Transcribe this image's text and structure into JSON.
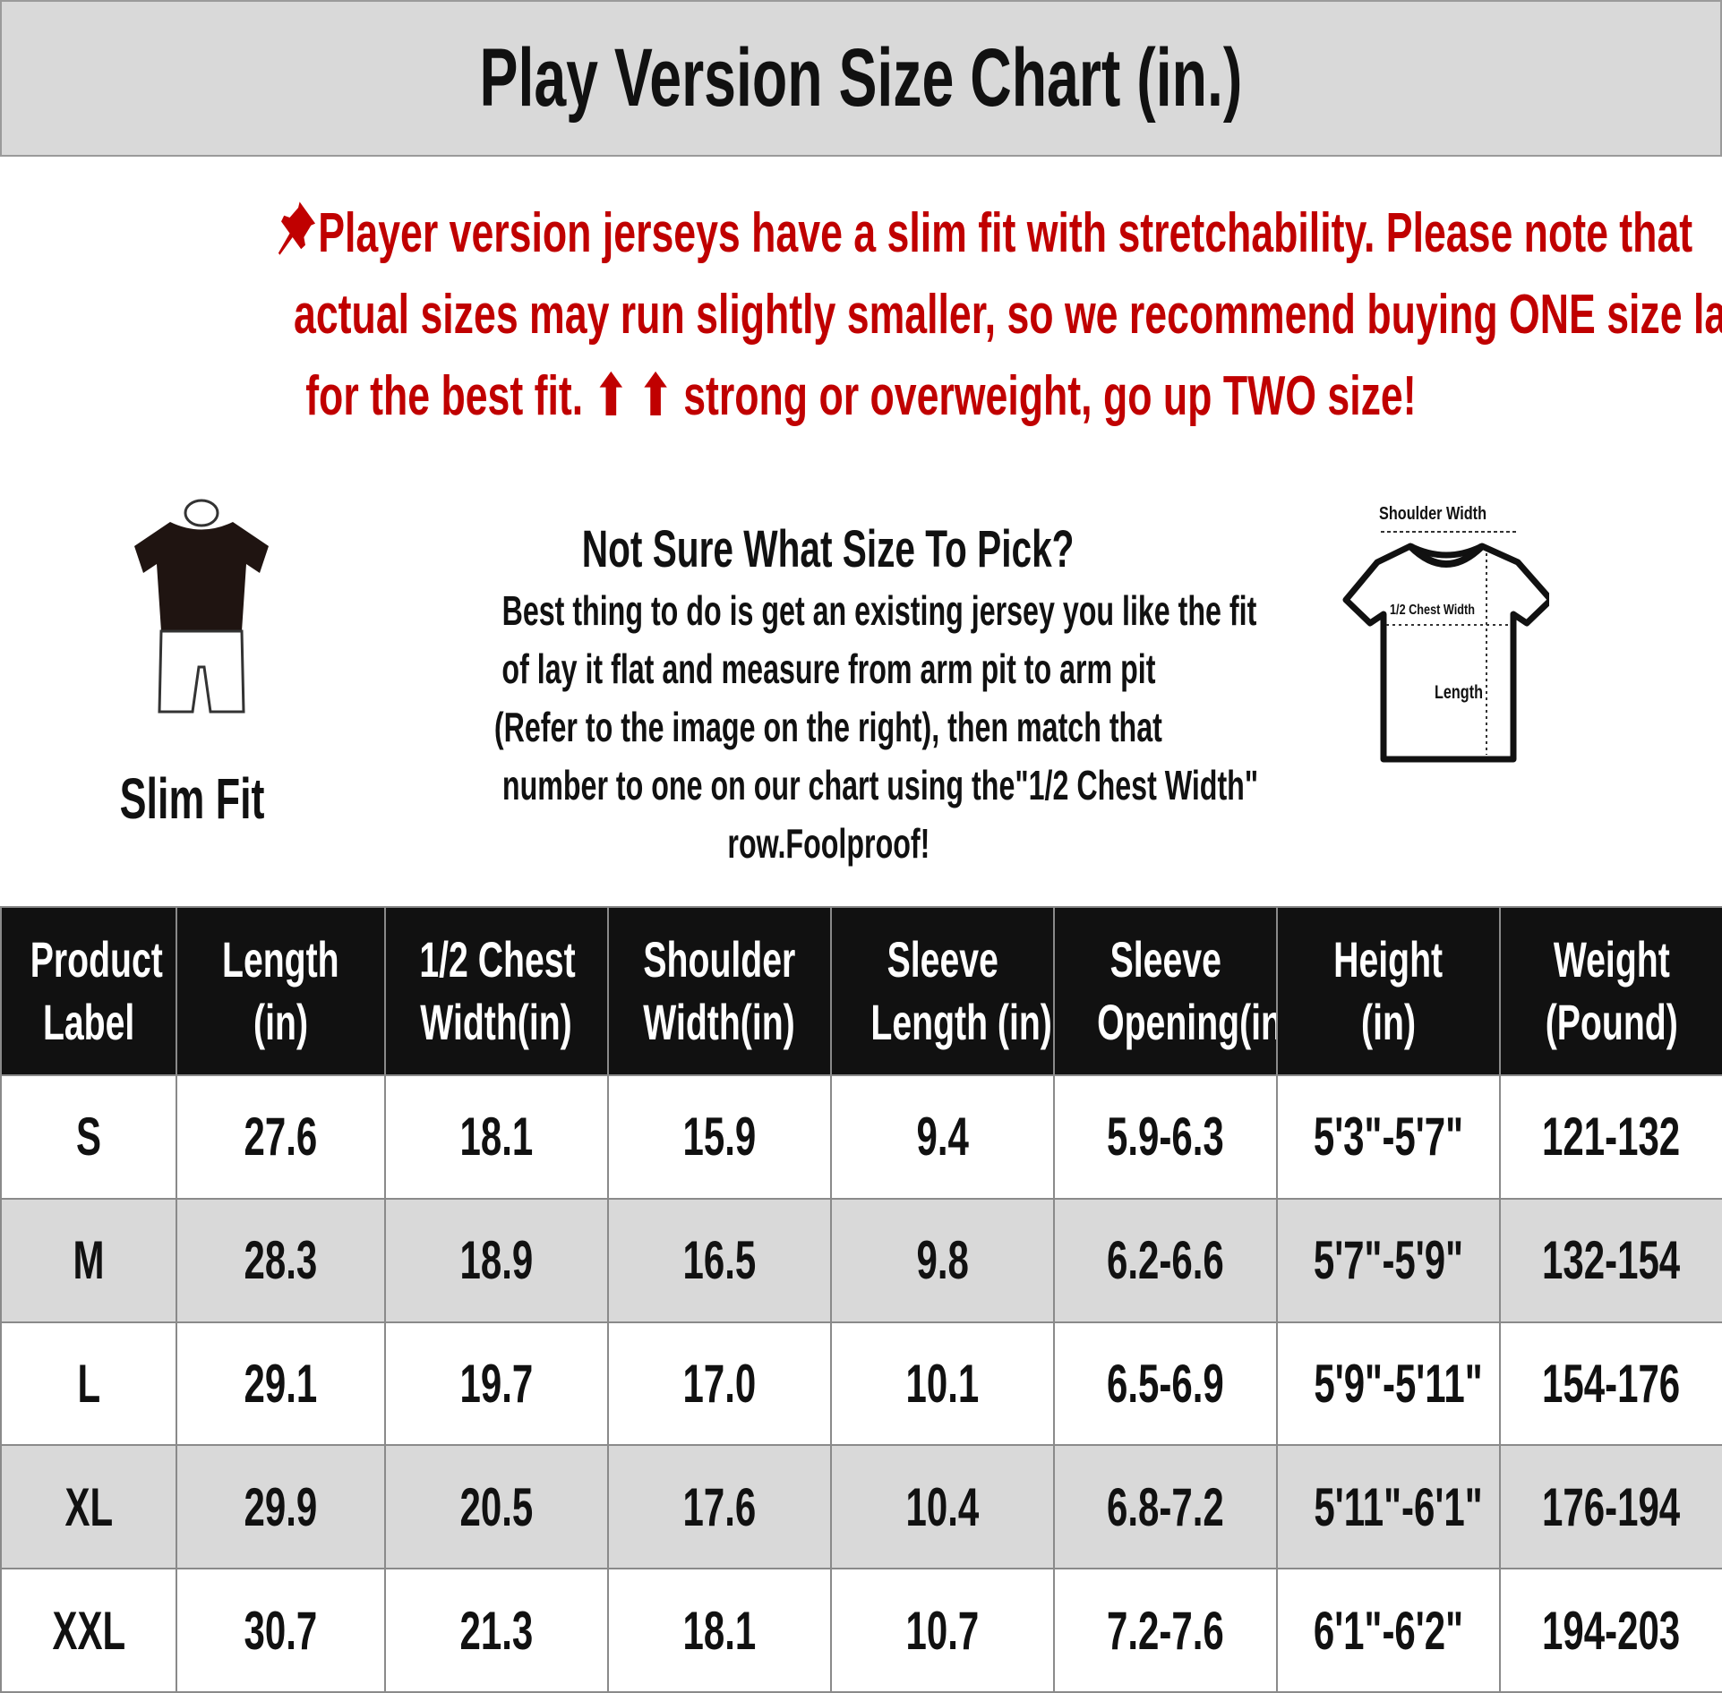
{
  "title": "Play Version Size Chart (in.)",
  "notice": {
    "icon": "pushpin-icon",
    "lines": [
      "Player version jerseys have a slim fit with stretchability. Please note that",
      "actual sizes may run slightly smaller, so we recommend buying ONE size larger",
      "for the best fit. ⬆ ⬆ strong or overweight, go up TWO size!"
    ],
    "color": "#c00000"
  },
  "fit_label": "Slim Fit",
  "help": {
    "heading": "Not Sure What Size To Pick?",
    "lines": [
      "Best thing to do is get an existing jersey you like the fit",
      "of lay it flat and measure from arm pit to arm pit",
      "(Refer to the image on the right), then match that",
      "number to one on our chart using the\"1/2 Chest Width\"",
      "row.Foolproof!"
    ]
  },
  "diagram": {
    "shoulder": "Shoulder Width",
    "chest": "1/2 Chest Width",
    "length": "Length"
  },
  "table": {
    "headers": [
      [
        "Product",
        "Label"
      ],
      [
        "Length",
        "(in)"
      ],
      [
        "1/2 Chest",
        "Width(in)"
      ],
      [
        "Shoulder",
        "Width(in)"
      ],
      [
        "Sleeve",
        "Length (in)"
      ],
      [
        "Sleeve",
        "Opening(in)"
      ],
      [
        "Height",
        "(in)"
      ],
      [
        "Weight",
        "(Pound)"
      ]
    ],
    "rows": [
      [
        "S",
        "27.6",
        "18.1",
        "15.9",
        "9.4",
        "5.9-6.3",
        "5'3\"-5'7\"",
        "121-132"
      ],
      [
        "M",
        "28.3",
        "18.9",
        "16.5",
        "9.8",
        "6.2-6.6",
        "5'7\"-5'9\"",
        "132-154"
      ],
      [
        "L",
        "29.1",
        "19.7",
        "17.0",
        "10.1",
        "6.5-6.9",
        "5'9\"-5'11\"",
        "154-176"
      ],
      [
        "XL",
        "29.9",
        "20.5",
        "17.6",
        "10.4",
        "6.8-7.2",
        "5'11\"-6'1\"",
        "176-194"
      ],
      [
        "XXL",
        "30.7",
        "21.3",
        "18.1",
        "10.7",
        "7.2-7.6",
        "6'1\"-6'2\"",
        "194-203"
      ]
    ]
  }
}
